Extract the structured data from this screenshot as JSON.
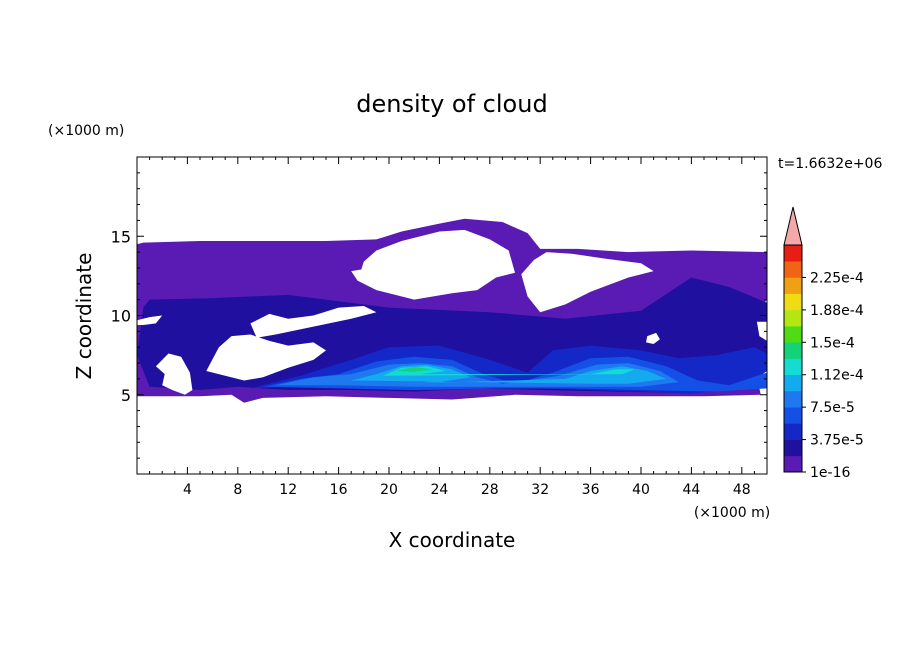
{
  "chart_data": {
    "type": "heatmap",
    "title": "density of cloud",
    "xlabel": "X coordinate",
    "ylabel": "Z coordinate",
    "x_unit": "(×1000 m)",
    "y_unit": "(×1000 m)",
    "time_label": "t=1.6632e+06",
    "xlim": [
      0,
      50
    ],
    "ylim": [
      0,
      20
    ],
    "x_ticks": [
      4,
      8,
      12,
      16,
      20,
      24,
      28,
      32,
      36,
      40,
      44,
      48
    ],
    "x_tick_labels": [
      "4",
      "8",
      "12",
      "16",
      "20",
      "24",
      "28",
      "32",
      "36",
      "40",
      "44",
      "48"
    ],
    "y_ticks": [
      5,
      10,
      15
    ],
    "y_tick_labels": [
      "5",
      "10",
      "15"
    ],
    "colorbar": {
      "levels": [
        1e-16,
        1.875e-05,
        3.75e-05,
        5.625e-05,
        7.5e-05,
        9.375e-05,
        0.0001125,
        0.00013125,
        0.00015,
        0.00016875,
        0.0001875,
        0.00020625,
        0.000225,
        0.00024375
      ],
      "labels": [
        "1e-16",
        "3.75e-5",
        "7.5e-5",
        "1.12e-4",
        "1.5e-4",
        "1.88e-4",
        "2.25e-4"
      ],
      "label_levels": [
        1e-16,
        3.75e-05,
        7.5e-05,
        0.0001125,
        0.00015,
        0.0001875,
        0.000225
      ],
      "colors": [
        "#5a1ab4",
        "#2010a0",
        "#1428c8",
        "#1450e6",
        "#1e78f0",
        "#14aaf0",
        "#14dcd2",
        "#14d278",
        "#50dc14",
        "#b4e614",
        "#f0dc14",
        "#f0a014",
        "#f06414",
        "#e61e14"
      ],
      "extend_color": "#f4a8a8",
      "extend": "max"
    },
    "regions": [
      {
        "level": 0,
        "polygon": [
          [
            0.5,
            14.6
          ],
          [
            5,
            14.7
          ],
          [
            10,
            14.7
          ],
          [
            15,
            14.7
          ],
          [
            19,
            14.8
          ],
          [
            21,
            15.3
          ],
          [
            24,
            15.8
          ],
          [
            26,
            16.1
          ],
          [
            29,
            15.9
          ],
          [
            31,
            15.2
          ],
          [
            32,
            14.2
          ],
          [
            35,
            14.2
          ],
          [
            39,
            14.0
          ],
          [
            44,
            14.1
          ],
          [
            50,
            14.0
          ],
          [
            50,
            11
          ],
          [
            49,
            10
          ],
          [
            50,
            9.6
          ],
          [
            50,
            7.5
          ],
          [
            49,
            7
          ],
          [
            49.5,
            5
          ],
          [
            45,
            4.9
          ],
          [
            40,
            4.9
          ],
          [
            35,
            4.9
          ],
          [
            30,
            5
          ],
          [
            25,
            4.7
          ],
          [
            20,
            4.8
          ],
          [
            15,
            4.9
          ],
          [
            10,
            4.8
          ],
          [
            8.5,
            4.5
          ],
          [
            7.5,
            5
          ],
          [
            5,
            4.9
          ],
          [
            0,
            4.9
          ],
          [
            0,
            14.5
          ]
        ]
      },
      {
        "level": 1,
        "polygon": [
          [
            1,
            11
          ],
          [
            6,
            11.1
          ],
          [
            12,
            11.3
          ],
          [
            20,
            10.5
          ],
          [
            28,
            10.2
          ],
          [
            34,
            9.8
          ],
          [
            40,
            10.3
          ],
          [
            44,
            12.4
          ],
          [
            47,
            11.8
          ],
          [
            50,
            10.8
          ],
          [
            50,
            7.6
          ],
          [
            48,
            7
          ],
          [
            48.5,
            5.4
          ],
          [
            44,
            5.1
          ],
          [
            38,
            5.2
          ],
          [
            32,
            5.3
          ],
          [
            27,
            5.4
          ],
          [
            22,
            5.2
          ],
          [
            17,
            5.3
          ],
          [
            12,
            5.3
          ],
          [
            8,
            5.5
          ],
          [
            5,
            5.3
          ],
          [
            1,
            5.5
          ],
          [
            0,
            7.5
          ],
          [
            0.5,
            10.5
          ]
        ]
      },
      {
        "level": 2,
        "polygon": [
          [
            9,
            5.4
          ],
          [
            13,
            6.2
          ],
          [
            17,
            7.2
          ],
          [
            20,
            8
          ],
          [
            24,
            8.1
          ],
          [
            28,
            7.2
          ],
          [
            31,
            6.4
          ],
          [
            33,
            7.8
          ],
          [
            36,
            8.1
          ],
          [
            40,
            7.8
          ],
          [
            43,
            7.3
          ],
          [
            46,
            7.5
          ],
          [
            49,
            8
          ],
          [
            50,
            7.6
          ],
          [
            50,
            6.5
          ],
          [
            48,
            5.3
          ],
          [
            44,
            5.1
          ],
          [
            40,
            5.2
          ],
          [
            36,
            5.3
          ],
          [
            32,
            5.4
          ],
          [
            28,
            5.4
          ],
          [
            24,
            5.3
          ],
          [
            20,
            5.3
          ],
          [
            16,
            5.5
          ],
          [
            12,
            5.5
          ]
        ]
      },
      {
        "level": 3,
        "polygon": [
          [
            10,
            5.5
          ],
          [
            13,
            6
          ],
          [
            16,
            6.3
          ],
          [
            19,
            7.1
          ],
          [
            22,
            7.4
          ],
          [
            25,
            7.2
          ],
          [
            27.5,
            6.3
          ],
          [
            30,
            5.7
          ],
          [
            33,
            6.4
          ],
          [
            36,
            7.3
          ],
          [
            39,
            7.4
          ],
          [
            42,
            6.8
          ],
          [
            44.5,
            5.9
          ],
          [
            47,
            5.6
          ],
          [
            50,
            6.4
          ],
          [
            50,
            5.4
          ],
          [
            46,
            5.2
          ],
          [
            40,
            5.3
          ],
          [
            34,
            5.4
          ],
          [
            28,
            5.4
          ],
          [
            22,
            5.3
          ],
          [
            16,
            5.4
          ]
        ]
      },
      {
        "level": 4,
        "polygon": [
          [
            11,
            5.6
          ],
          [
            14,
            6.1
          ],
          [
            17,
            6.3
          ],
          [
            20,
            6.9
          ],
          [
            22.5,
            7.0
          ],
          [
            25,
            6.8
          ],
          [
            27,
            6.1
          ],
          [
            29,
            5.7
          ],
          [
            33.5,
            6.2
          ],
          [
            36.5,
            6.9
          ],
          [
            39,
            7.0
          ],
          [
            41.5,
            6.5
          ],
          [
            43,
            5.8
          ],
          [
            40,
            5.5
          ],
          [
            34,
            5.5
          ],
          [
            28,
            5.5
          ],
          [
            22,
            5.5
          ],
          [
            16,
            5.6
          ]
        ]
      },
      {
        "level": 5,
        "polygon": [
          [
            17,
            5.9
          ],
          [
            19,
            6.3
          ],
          [
            21,
            6.8
          ],
          [
            23,
            6.9
          ],
          [
            25,
            6.6
          ],
          [
            26.5,
            6.1
          ],
          [
            24,
            5.8
          ],
          [
            21,
            5.7
          ],
          [
            34,
            6.0
          ],
          [
            36,
            6.5
          ],
          [
            38.5,
            6.8
          ],
          [
            40.5,
            6.5
          ],
          [
            42,
            6.0
          ],
          [
            39,
            5.7
          ],
          [
            36,
            5.7
          ]
        ]
      },
      {
        "level": 6,
        "polygon": [
          [
            19.5,
            6.2
          ],
          [
            21,
            6.7
          ],
          [
            23,
            6.8
          ],
          [
            24.5,
            6.5
          ],
          [
            22.5,
            6.3
          ],
          [
            36,
            6.3
          ],
          [
            38,
            6.6
          ],
          [
            39.5,
            6.6
          ],
          [
            38.5,
            6.3
          ]
        ]
      },
      {
        "level": 7,
        "polygon": [
          [
            20.5,
            6.5
          ],
          [
            22,
            6.75
          ],
          [
            23.5,
            6.6
          ],
          [
            22,
            6.45
          ]
        ]
      }
    ],
    "holes": [
      {
        "polygon": [
          [
            17,
            12.8
          ],
          [
            17.8,
            12.9
          ],
          [
            18,
            13.4
          ],
          [
            19,
            14.1
          ],
          [
            21,
            14.7
          ],
          [
            24,
            15.3
          ],
          [
            26,
            15.4
          ],
          [
            28,
            14.8
          ],
          [
            29.5,
            14.1
          ],
          [
            30,
            12.7
          ],
          [
            28.5,
            12.4
          ],
          [
            27,
            11.6
          ],
          [
            25,
            11.4
          ],
          [
            22,
            11
          ],
          [
            19,
            11.6
          ],
          [
            17.5,
            12.2
          ]
        ]
      },
      {
        "level_hole": true,
        "polygon": [
          [
            30.5,
            12.6
          ],
          [
            31.5,
            13.5
          ],
          [
            32.5,
            14
          ],
          [
            34.5,
            13.9
          ],
          [
            37,
            13.6
          ],
          [
            40,
            13.3
          ],
          [
            41,
            12.8
          ],
          [
            39,
            12.4
          ],
          [
            36,
            11.5
          ],
          [
            34,
            10.7
          ],
          [
            32,
            10.2
          ],
          [
            31,
            11.2
          ]
        ]
      },
      {
        "polygon": [
          [
            9,
            9.5
          ],
          [
            10.5,
            10.1
          ],
          [
            12,
            9.8
          ],
          [
            14,
            10
          ],
          [
            16,
            10.5
          ],
          [
            18,
            10.6
          ],
          [
            19,
            10.2
          ],
          [
            17,
            9.8
          ],
          [
            14,
            9.3
          ],
          [
            11,
            8.8
          ],
          [
            9.5,
            8.6
          ]
        ]
      },
      {
        "polygon": [
          [
            5.5,
            6.5
          ],
          [
            6.5,
            8
          ],
          [
            7.5,
            8.7
          ],
          [
            9,
            8.8
          ],
          [
            10.5,
            8.4
          ],
          [
            12,
            8.1
          ],
          [
            14,
            8.3
          ],
          [
            15,
            7.8
          ],
          [
            14,
            7.2
          ],
          [
            12,
            6.7
          ],
          [
            10,
            6.1
          ],
          [
            8.5,
            5.9
          ],
          [
            7,
            6.2
          ]
        ]
      },
      {
        "polygon": [
          [
            1.5,
            6.8
          ],
          [
            2.5,
            7.6
          ],
          [
            3.5,
            7.4
          ],
          [
            4.2,
            6.4
          ],
          [
            4.4,
            5.3
          ],
          [
            3.8,
            5
          ],
          [
            2.8,
            5.3
          ],
          [
            2,
            5.6
          ],
          [
            2.2,
            6.3
          ]
        ]
      },
      {
        "polygon": [
          [
            0,
            9.7
          ],
          [
            1,
            9.9
          ],
          [
            2,
            10
          ],
          [
            1.5,
            9.5
          ],
          [
            0.5,
            9.4
          ],
          [
            0,
            9.4
          ]
        ]
      },
      {
        "polygon": [
          [
            40.5,
            8.7
          ],
          [
            41.2,
            8.9
          ],
          [
            41.5,
            8.5
          ],
          [
            41,
            8.2
          ],
          [
            40.4,
            8.3
          ]
        ]
      },
      {
        "polygon": [
          [
            49.2,
            9.6
          ],
          [
            50,
            9.6
          ],
          [
            50,
            8.4
          ],
          [
            49.4,
            8.7
          ]
        ]
      }
    ]
  }
}
